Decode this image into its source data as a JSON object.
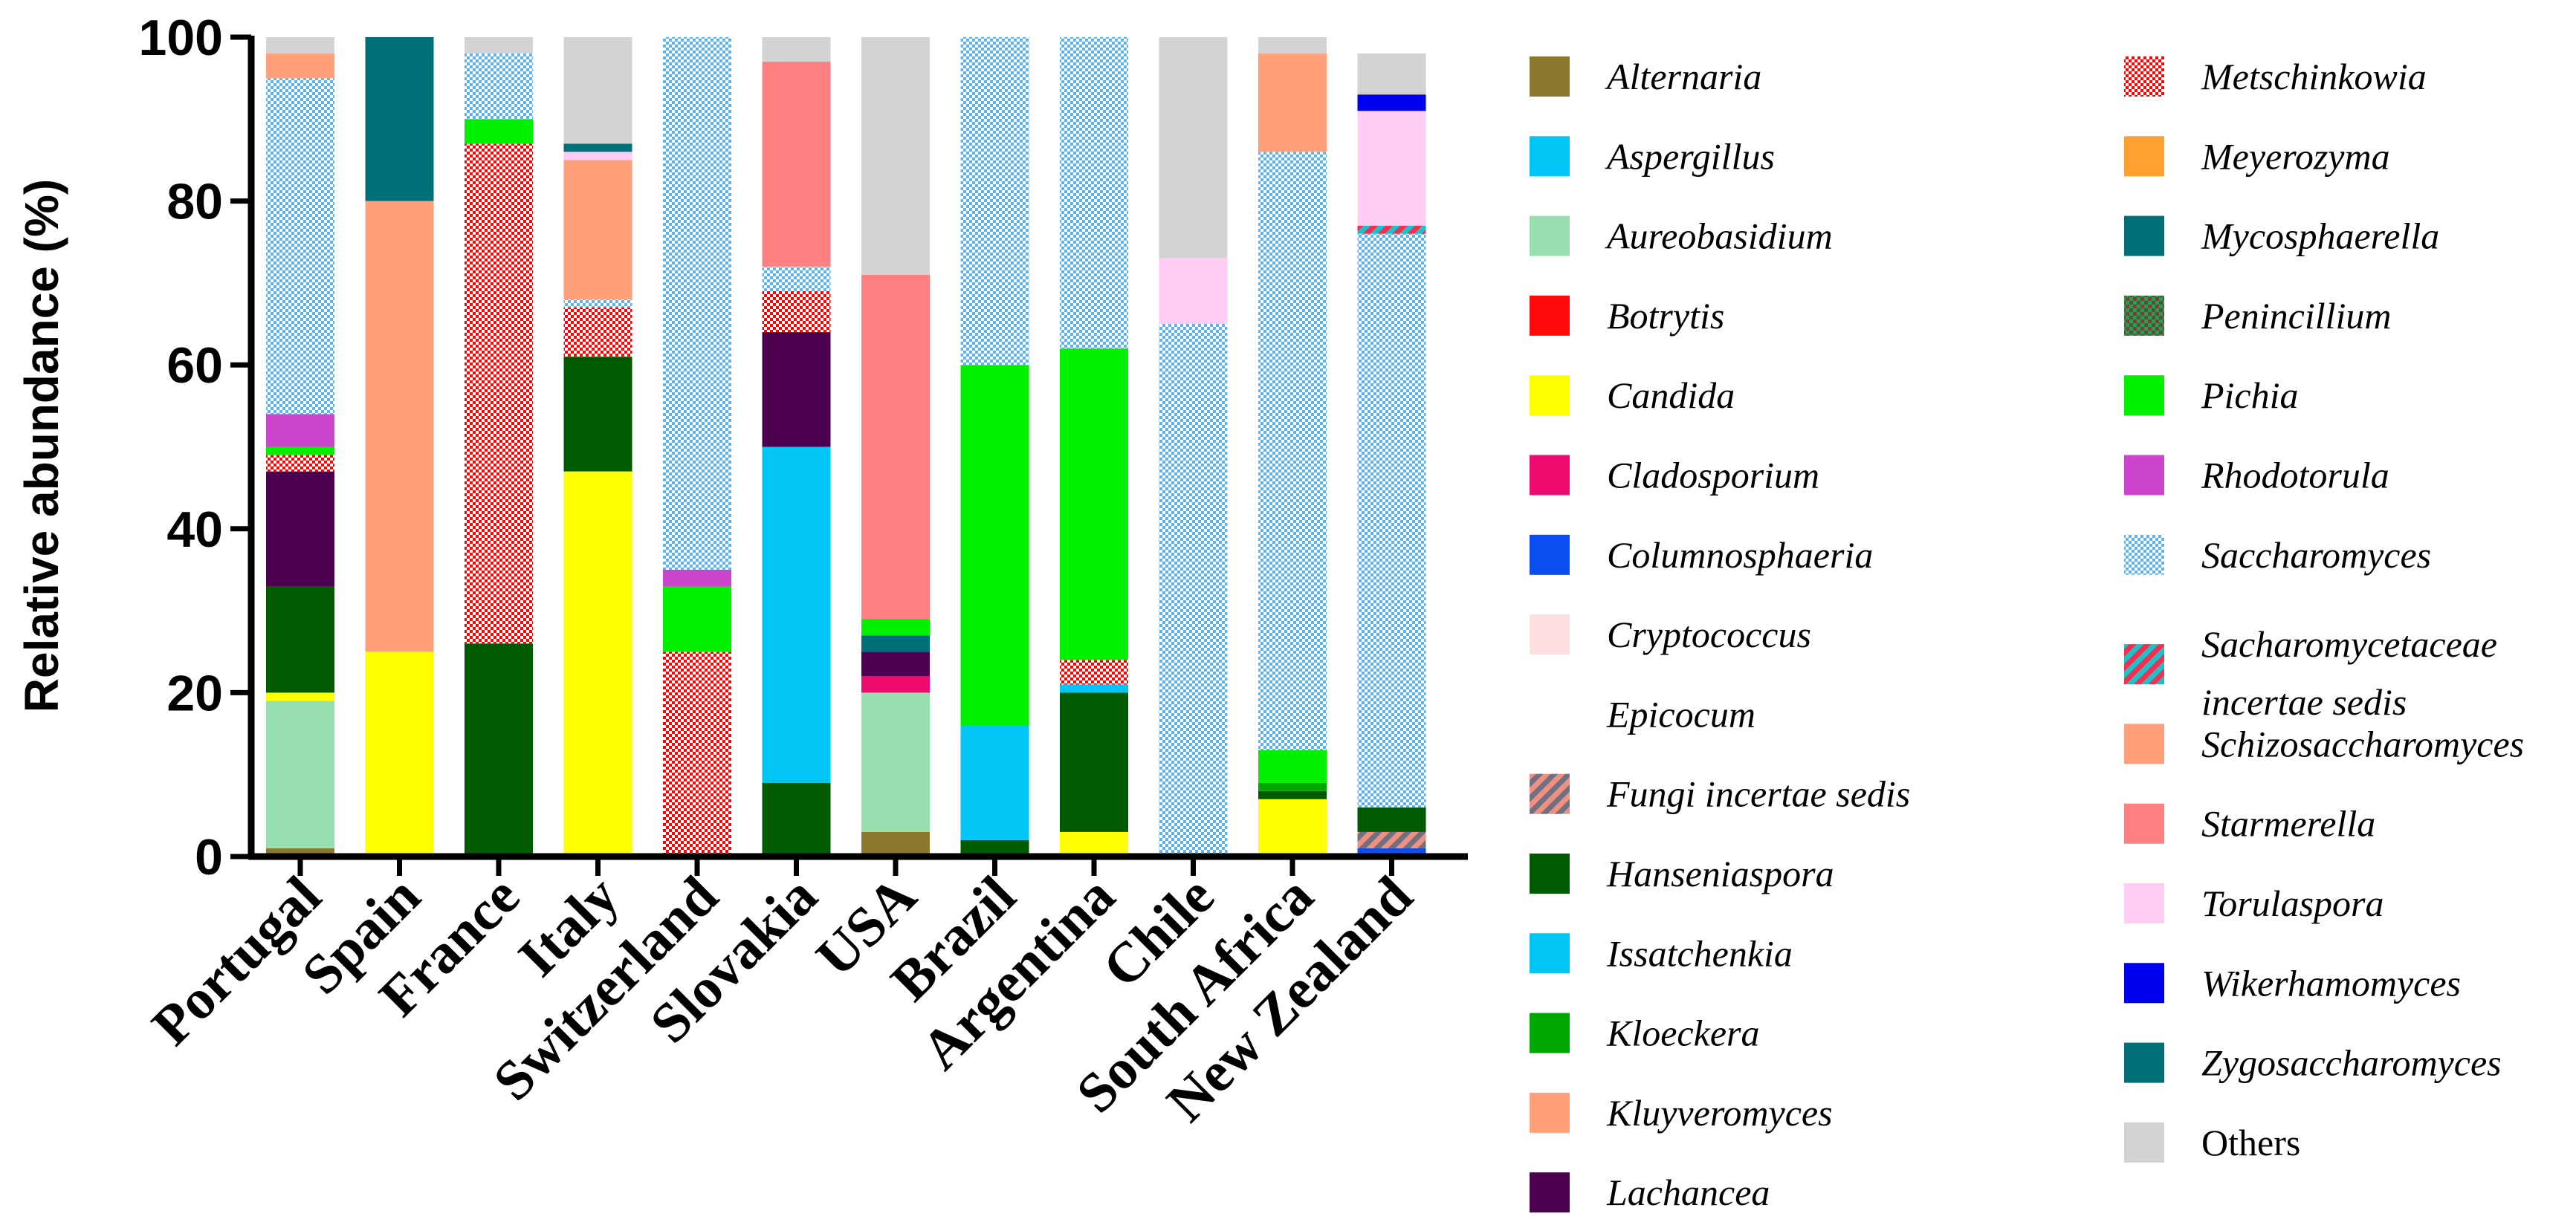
{
  "chart_data": {
    "type": "bar",
    "stacked": true,
    "title": "",
    "xlabel": "",
    "ylabel": "Relative abundance (%)",
    "ylim": [
      0,
      100
    ],
    "yticks": [
      "0",
      "20",
      "40",
      "60",
      "80",
      "100"
    ],
    "grid": false,
    "legend_position": "right",
    "categories": [
      "Portugal",
      "Spain",
      "France",
      "Italy",
      "Switzerland",
      "Slovakia",
      "USA",
      "Brazil",
      "Argentina",
      "Chile",
      "South Africa",
      "New Zealand"
    ],
    "series": [
      {
        "name": "Alternaria",
        "legend_lines": [
          "Alternaria"
        ],
        "color": "#8B7A2E",
        "pattern": "solid",
        "values": [
          1,
          0,
          0,
          0,
          0,
          0,
          3,
          0,
          0,
          0,
          0,
          0
        ]
      },
      {
        "name": "Aspergillus",
        "legend_lines": [
          "Aspergillus"
        ],
        "color": "#00C5F5",
        "pattern": "solid",
        "values": [
          0,
          0,
          0,
          0,
          0,
          0,
          0,
          0,
          0,
          0,
          0,
          0
        ]
      },
      {
        "name": "Aureobasidium",
        "legend_lines": [
          "Aureobasidium"
        ],
        "color": "#98DFB0",
        "pattern": "solid",
        "values": [
          18,
          0,
          0,
          0,
          0,
          0,
          17,
          0,
          0,
          0,
          0,
          0
        ]
      },
      {
        "name": "Botrytis",
        "legend_lines": [
          "Botrytis"
        ],
        "color": "#FF0A0A",
        "pattern": "solid",
        "values": [
          0,
          0,
          0,
          0,
          0,
          0,
          0,
          0,
          0,
          0,
          0,
          0
        ]
      },
      {
        "name": "Candida",
        "legend_lines": [
          "Candida"
        ],
        "color": "#FFFF00",
        "pattern": "solid",
        "values": [
          1,
          25,
          0,
          47,
          0,
          0,
          0,
          0,
          3,
          0,
          7,
          0
        ]
      },
      {
        "name": "Cladosporium",
        "legend_lines": [
          "Cladosporium"
        ],
        "color": "#EE0A6E",
        "pattern": "solid",
        "values": [
          0,
          0,
          0,
          0,
          0,
          0,
          2,
          0,
          0,
          0,
          0,
          0
        ]
      },
      {
        "name": "Columnosphaeria",
        "legend_lines": [
          "Columnosphaeria"
        ],
        "color": "#0A4EF0",
        "pattern": "solid",
        "values": [
          0,
          0,
          0,
          0,
          0,
          0,
          0,
          0,
          0,
          0,
          0,
          1
        ]
      },
      {
        "name": "Cryptococcus",
        "legend_lines": [
          "Cryptococcus"
        ],
        "color": "#FFE0E0",
        "pattern": "solid",
        "values": [
          0,
          0,
          0,
          0,
          0,
          0,
          0,
          0,
          0,
          0,
          0,
          0
        ]
      },
      {
        "name": "Epicocum",
        "legend_lines": [
          "Epicocum"
        ],
        "color": "#FFFFFF",
        "pattern": "solid",
        "values": [
          0,
          0,
          0,
          0,
          0,
          0,
          0,
          0,
          0,
          0,
          0,
          0
        ]
      },
      {
        "name": "Fungi incertae sedis",
        "legend_lines": [
          "Fungi incertae sedis"
        ],
        "color": "#F09080",
        "color2": "#707080",
        "pattern": "stripes",
        "values": [
          0,
          0,
          0,
          0,
          0,
          0,
          0,
          0,
          0,
          0,
          0,
          2
        ]
      },
      {
        "name": "Hanseniaspora",
        "legend_lines": [
          "Hanseniaspora"
        ],
        "color": "#005A00",
        "pattern": "solid",
        "values": [
          13,
          0,
          26,
          14,
          0,
          9,
          0,
          2,
          17,
          0,
          1,
          3
        ]
      },
      {
        "name": "Issatchenkia",
        "legend_lines": [
          "Issatchenkia"
        ],
        "color": "#00C5F5",
        "pattern": "solid",
        "values": [
          0,
          0,
          0,
          0,
          0,
          41,
          0,
          14,
          1,
          0,
          0,
          0
        ]
      },
      {
        "name": "Kloeckera",
        "legend_lines": [
          "Kloeckera"
        ],
        "color": "#00A800",
        "pattern": "solid",
        "values": [
          0,
          0,
          0,
          0,
          0,
          0,
          0,
          0,
          0,
          0,
          1,
          0
        ]
      },
      {
        "name": "Kluyveromyces",
        "legend_lines": [
          "Kluyveromyces"
        ],
        "color": "#FFA07A",
        "pattern": "solid",
        "values": [
          0,
          0,
          0,
          0,
          0,
          0,
          0,
          0,
          0,
          0,
          0,
          0
        ]
      },
      {
        "name": "Lachancea",
        "legend_lines": [
          "Lachancea"
        ],
        "color": "#4B0050",
        "pattern": "solid",
        "values": [
          14,
          0,
          0,
          0,
          0,
          14,
          3,
          0,
          0,
          0,
          0,
          0
        ]
      },
      {
        "name": "Metschinkowia",
        "legend_lines": [
          "Metschinkowia"
        ],
        "color": "#FF0000",
        "pattern": "dots",
        "values": [
          2,
          0,
          61,
          6,
          25,
          5,
          0,
          0,
          3,
          0,
          0,
          0
        ]
      },
      {
        "name": "Meyerozyma",
        "legend_lines": [
          "Meyerozyma"
        ],
        "color": "#FFA030",
        "pattern": "solid",
        "values": [
          0,
          0,
          0,
          0,
          0,
          0,
          0,
          0,
          0,
          0,
          0,
          0
        ]
      },
      {
        "name": "Mycosphaerella",
        "legend_lines": [
          "Mycosphaerella"
        ],
        "color": "#007078",
        "pattern": "solid",
        "values": [
          0,
          0,
          0,
          0,
          0,
          0,
          2,
          0,
          0,
          0,
          0,
          0
        ]
      },
      {
        "name": "Penincillium",
        "legend_lines": [
          "Penincillium"
        ],
        "color": "#6A4A2A",
        "color2": "#20A060",
        "pattern": "checker",
        "values": [
          0,
          0,
          0,
          0,
          0,
          0,
          0,
          0,
          0,
          0,
          0,
          0
        ]
      },
      {
        "name": "Pichia",
        "legend_lines": [
          "Pichia"
        ],
        "color": "#00F000",
        "pattern": "solid",
        "values": [
          1,
          0,
          3,
          0,
          8,
          0,
          2,
          44,
          38,
          0,
          4,
          0
        ]
      },
      {
        "name": "Rhodotorula",
        "legend_lines": [
          "Rhodotorula"
        ],
        "color": "#CC44CC",
        "pattern": "solid",
        "values": [
          4,
          0,
          0,
          0,
          2,
          0,
          0,
          0,
          0,
          0,
          0,
          0
        ]
      },
      {
        "name": "Saccharomyces",
        "legend_lines": [
          "Saccharomyces"
        ],
        "color": "#5AB4F0",
        "pattern": "dots",
        "values": [
          41,
          0,
          8,
          1,
          65,
          3,
          0,
          40,
          38,
          65,
          73,
          70
        ]
      },
      {
        "name": "Sacharomycetaceae incertae sedis",
        "legend_lines": [
          "Sacharomycetaceae",
          "incertae sedis"
        ],
        "color": "#F03050",
        "color2": "#20C0C8",
        "pattern": "stripes",
        "values": [
          0,
          0,
          0,
          0,
          0,
          0,
          0,
          0,
          0,
          0,
          0,
          1
        ]
      },
      {
        "name": "Schizosaccharomyces",
        "legend_lines": [
          "Schizosaccharomyces"
        ],
        "color": "#FFA07A",
        "pattern": "solid",
        "values": [
          3,
          55,
          0,
          17,
          0,
          0,
          0,
          0,
          0,
          0,
          12,
          0
        ]
      },
      {
        "name": "Starmerella",
        "legend_lines": [
          "Starmerella"
        ],
        "color": "#FF8080",
        "pattern": "solid",
        "values": [
          0,
          0,
          0,
          0,
          0,
          25,
          42,
          0,
          0,
          0,
          0,
          0
        ]
      },
      {
        "name": "Torulaspora",
        "legend_lines": [
          "Torulaspora"
        ],
        "color": "#FFCCF5",
        "pattern": "solid",
        "values": [
          0,
          0,
          0,
          1,
          0,
          0,
          0,
          0,
          0,
          8,
          0,
          14
        ]
      },
      {
        "name": "Wikerhamomyces",
        "legend_lines": [
          "Wikerhamomyces"
        ],
        "color": "#0000F0",
        "pattern": "solid",
        "values": [
          0,
          0,
          0,
          0,
          0,
          0,
          0,
          0,
          0,
          0,
          0,
          2
        ]
      },
      {
        "name": "Zygosaccharomyces",
        "legend_lines": [
          "Zygosaccharomyces"
        ],
        "color": "#007078",
        "pattern": "solid",
        "values": [
          0,
          20,
          0,
          1,
          0,
          0,
          0,
          0,
          0,
          0,
          0,
          0
        ]
      },
      {
        "name": "Others",
        "legend_lines": [
          "Others"
        ],
        "color": "#D3D3D3",
        "pattern": "solid",
        "italic": false,
        "values": [
          2,
          0,
          2,
          13,
          0,
          3,
          29,
          0,
          0,
          27,
          2,
          5
        ]
      }
    ]
  }
}
